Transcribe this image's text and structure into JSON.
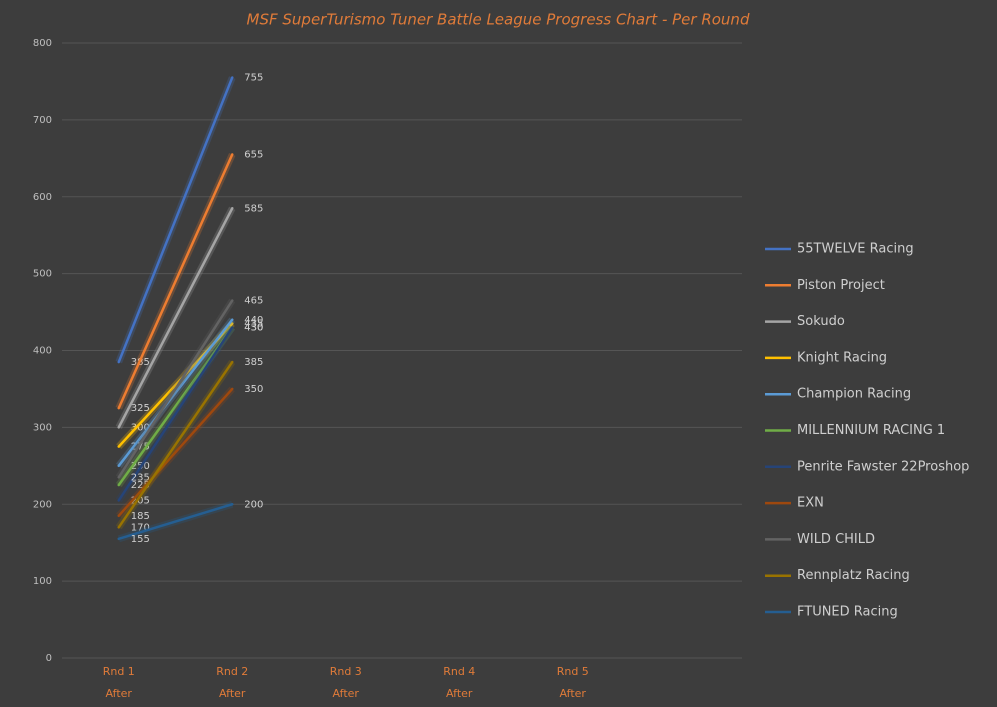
{
  "chart_data": {
    "type": "line",
    "title": "MSF SuperTurismo Tuner Battle League Progress Chart - Per Round",
    "categories": [
      [
        "Rnd 1",
        "After"
      ],
      [
        "Rnd 2",
        "After"
      ],
      [
        "Rnd 3",
        "After"
      ],
      [
        "Rnd 4",
        "After"
      ],
      [
        "Rnd 5",
        "After"
      ]
    ],
    "ylim": [
      0,
      800
    ],
    "yticks": [
      0,
      100,
      200,
      300,
      400,
      500,
      600,
      700,
      800
    ],
    "grid": true,
    "legend": "right",
    "series": [
      {
        "name": "55TWELVE Racing",
        "color": "#4472c4",
        "values": [
          385,
          755,
          null,
          null,
          null
        ]
      },
      {
        "name": "Piston Project",
        "color": "#ed7d31",
        "values": [
          325,
          655,
          null,
          null,
          null
        ]
      },
      {
        "name": "Sokudo",
        "color": "#a5a5a5",
        "values": [
          300,
          585,
          null,
          null,
          null
        ]
      },
      {
        "name": "Knight Racing",
        "color": "#ffc000",
        "values": [
          275,
          435,
          null,
          null,
          null
        ]
      },
      {
        "name": "Champion Racing",
        "color": "#5b9bd5",
        "values": [
          250,
          440,
          null,
          null,
          null
        ]
      },
      {
        "name": "MILLENNIUM RACING 1",
        "color": "#70ad47",
        "values": [
          225,
          430,
          null,
          null,
          null
        ]
      },
      {
        "name": "Penrite Fawster 22Proshop",
        "color": "#264478",
        "values": [
          205,
          430,
          null,
          null,
          null
        ]
      },
      {
        "name": "EXN",
        "color": "#9e480e",
        "values": [
          185,
          350,
          null,
          null,
          null
        ]
      },
      {
        "name": "WILD CHILD",
        "color": "#636363",
        "values": [
          235,
          465,
          null,
          null,
          null
        ]
      },
      {
        "name": "Rennplatz Racing",
        "color": "#997300",
        "values": [
          170,
          385,
          null,
          null,
          null
        ]
      },
      {
        "name": "FTUNED Racing",
        "color": "#255e91",
        "values": [
          155,
          200,
          null,
          null,
          null
        ]
      }
    ]
  }
}
